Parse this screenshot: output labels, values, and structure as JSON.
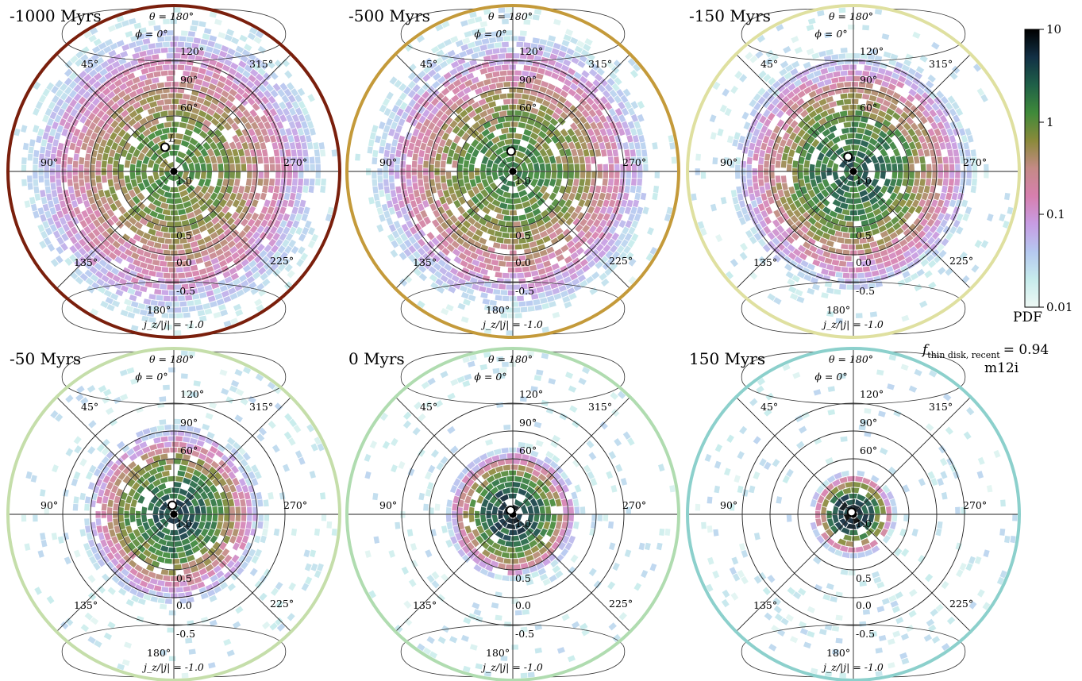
{
  "figure": {
    "annotation_fraction_prefix": "f",
    "annotation_fraction_subscript": "thin disk, recent",
    "annotation_fraction_value": "= 0.94",
    "annotation_fraction": 0.94,
    "annotation_sim": "m12i"
  },
  "colors": {
    "rings": "#000000",
    "center_marker": "#000000",
    "vector_marker_fill": "#ffffff",
    "colormap": [
      "#eef8f4",
      "#c6ecec",
      "#b5c8f0",
      "#c79ce3",
      "#d77fae",
      "#c48a86",
      "#8a8a3a",
      "#3f8a3a",
      "#1f6048",
      "#123045",
      "#000000"
    ]
  },
  "chart_data": [
    {
      "type": "heatmap",
      "projection": "polar",
      "title": "-1000 Myrs",
      "border_color": "#7a1f0c",
      "theta_labels": [
        "θ = 180°",
        "120°",
        "90°",
        "60°"
      ],
      "phi_labels": [
        "ϕ = 0°",
        "45°",
        "90°",
        "135°",
        "180°",
        "225°",
        "270°",
        "315°"
      ],
      "jz_labels": [
        "1.0",
        "0.5",
        "0.0",
        "-0.5",
        "j_z/|j| = -1.0"
      ],
      "vector_label": "L",
      "vector_marker": {
        "theta_deg": 28,
        "phi_deg": 340
      },
      "density_spread_deg": 78,
      "density_peak": 1.2
    },
    {
      "type": "heatmap",
      "projection": "polar",
      "title": "-500 Myrs",
      "border_color": "#c49a3a",
      "theta_labels": [
        "θ = 180°",
        "120°",
        "90°",
        "60°"
      ],
      "phi_labels": [
        "ϕ = 0°",
        "45°",
        "90°",
        "135°",
        "180°",
        "225°",
        "270°",
        "315°"
      ],
      "jz_labels": [
        "1.0",
        "0.5",
        "0.0",
        "-0.5",
        "j_z/|j| = -1.0"
      ],
      "vector_label": "",
      "vector_marker": {
        "theta_deg": 22,
        "phi_deg": 355
      },
      "density_spread_deg": 72,
      "density_peak": 1.6
    },
    {
      "type": "heatmap",
      "projection": "polar",
      "title": "-150 Myrs",
      "border_color": "#dfe0a0",
      "theta_labels": [
        "θ = 180°",
        "120°",
        "90°",
        "60°"
      ],
      "phi_labels": [
        "ϕ = 0°",
        "45°",
        "90°",
        "135°",
        "180°",
        "225°",
        "270°",
        "315°"
      ],
      "jz_labels": [
        "1.0",
        "0.5",
        "0.0",
        "-0.5",
        "j_z/|j| = -1.0"
      ],
      "vector_label": "",
      "vector_marker": {
        "theta_deg": 17,
        "phi_deg": 340
      },
      "density_spread_deg": 58,
      "density_peak": 3.0
    },
    {
      "type": "heatmap",
      "projection": "polar",
      "title": "-50 Myrs",
      "border_color": "#c5deaa",
      "theta_labels": [
        "θ = 180°",
        "120°",
        "90°",
        "60°"
      ],
      "phi_labels": [
        "ϕ = 0°",
        "45°",
        "90°",
        "135°",
        "180°",
        "225°",
        "270°",
        "315°"
      ],
      "jz_labels": [
        "1.0",
        "0.5",
        "0.0",
        "-0.5",
        "j_z/|j| = -1.0"
      ],
      "vector_label": "",
      "vector_marker": {
        "theta_deg": 10,
        "phi_deg": 350
      },
      "density_spread_deg": 42,
      "density_peak": 4.0
    },
    {
      "type": "heatmap",
      "projection": "polar",
      "title": "0 Myrs",
      "border_color": "#b0dcb0",
      "theta_labels": [
        "θ = 180°",
        "120°",
        "90°",
        "60°"
      ],
      "phi_labels": [
        "ϕ = 0°",
        "45°",
        "90°",
        "135°",
        "180°",
        "225°",
        "270°",
        "315°"
      ],
      "jz_labels": [
        "1.0",
        "0.5",
        "0.0",
        "-0.5",
        "j_z/|j| = -1.0"
      ],
      "vector_label": "",
      "vector_marker": {
        "theta_deg": 5,
        "phi_deg": 330
      },
      "density_spread_deg": 30,
      "density_peak": 6.0
    },
    {
      "type": "heatmap",
      "projection": "polar",
      "title": "150 Myrs",
      "border_color": "#8cd0cc",
      "theta_labels": [
        "θ = 180°",
        "120°",
        "90°",
        "60°"
      ],
      "phi_labels": [
        "ϕ = 0°",
        "45°",
        "90°",
        "135°",
        "180°",
        "225°",
        "270°",
        "315°"
      ],
      "jz_labels": [
        "1.0",
        "0.5",
        "0.0",
        "-0.5",
        "j_z/|j| = -1.0"
      ],
      "vector_label": "",
      "vector_marker": {
        "theta_deg": 3,
        "phi_deg": 320
      },
      "density_spread_deg": 18,
      "density_peak": 9.0
    }
  ],
  "colorbar": {
    "scale": "log",
    "range": [
      0.01,
      10
    ],
    "ticks": [
      "10",
      "1",
      "0.1",
      "0.01"
    ],
    "label": "PDF"
  }
}
